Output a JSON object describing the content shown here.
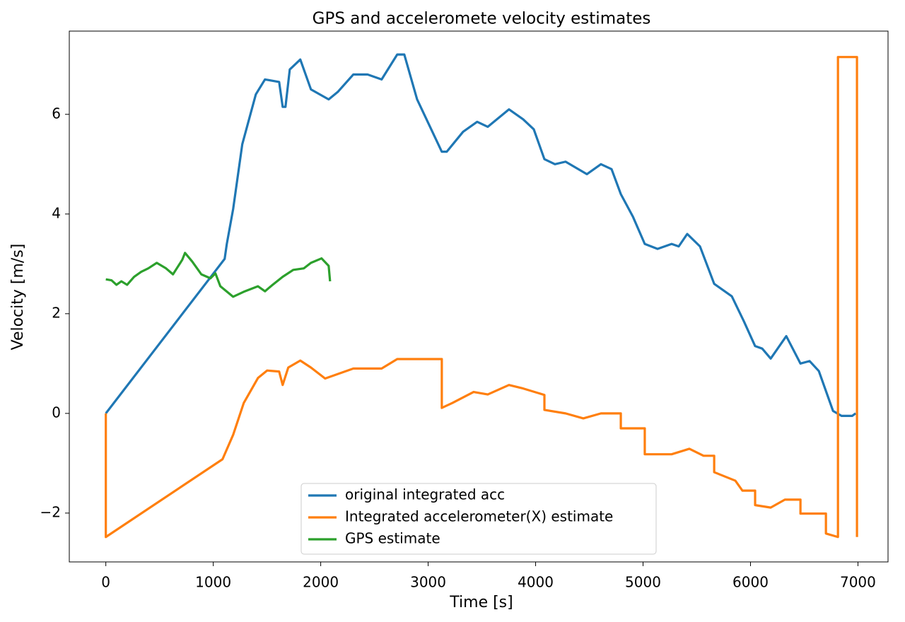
{
  "chart_data": {
    "type": "line",
    "title": "GPS and acceleromete velocity estimates",
    "x_label": "Time [s]",
    "y_label": "Velocity [m/s]",
    "xlim": [
      -340,
      7280
    ],
    "ylim": [
      -2.98,
      7.67
    ],
    "xticks": [
      0,
      1000,
      2000,
      3000,
      4000,
      5000,
      6000,
      7000
    ],
    "yticks": [
      {
        "value": -2,
        "label": "−2"
      },
      0,
      2,
      4,
      6
    ],
    "grid": false,
    "legend": "lower center",
    "series": [
      {
        "name": "original integrated acc",
        "color": "#1f77b4",
        "x": [
          0,
          1106,
          1126,
          1185,
          1270,
          1396,
          1481,
          1613,
          1646,
          1672,
          1712,
          1810,
          1909,
          2074,
          2159,
          2304,
          2436,
          2567,
          2712,
          2778,
          2897,
          3127,
          3173,
          3325,
          3456,
          3555,
          3752,
          3884,
          3983,
          4082,
          4180,
          4279,
          4477,
          4608,
          4707,
          4793,
          4905,
          5016,
          5135,
          5266,
          5332,
          5411,
          5530,
          5662,
          5727,
          5826,
          5938,
          6043,
          6109,
          6188,
          6333,
          6465,
          6550,
          6636,
          6768,
          6847,
          6946,
          6979
        ],
        "values": [
          0,
          3.1,
          3.4,
          4.1,
          5.4,
          6.4,
          6.7,
          6.65,
          6.15,
          6.15,
          6.9,
          7.1,
          6.5,
          6.3,
          6.45,
          6.8,
          6.8,
          6.7,
          7.2,
          7.2,
          6.3,
          5.25,
          5.25,
          5.65,
          5.85,
          5.75,
          6.1,
          5.9,
          5.7,
          5.1,
          5.0,
          5.05,
          4.8,
          5.0,
          4.9,
          4.4,
          3.95,
          3.4,
          3.3,
          3.4,
          3.35,
          3.6,
          3.35,
          2.6,
          2.5,
          2.35,
          1.85,
          1.35,
          1.3,
          1.1,
          1.55,
          1.0,
          1.05,
          0.85,
          0.05,
          -0.05,
          -0.05,
          0
        ]
      },
      {
        "name": "Integrated accelerometer(X) estimate",
        "color": "#ff7f0e",
        "x": [
          0,
          0,
          1086,
          1185,
          1284,
          1416,
          1501,
          1613,
          1646,
          1698,
          1810,
          1909,
          2041,
          2304,
          2567,
          2712,
          3127,
          3127,
          3226,
          3423,
          3555,
          3752,
          3884,
          4082,
          4082,
          4279,
          4444,
          4608,
          4793,
          4793,
          5016,
          5016,
          5266,
          5431,
          5563,
          5662,
          5662,
          5859,
          5925,
          6043,
          6043,
          6188,
          6320,
          6465,
          6465,
          6702,
          6702,
          6814,
          6814,
          6991,
          6991
        ],
        "values": [
          0,
          -2.48,
          -0.92,
          -0.43,
          0.21,
          0.71,
          0.86,
          0.84,
          0.57,
          0.92,
          1.06,
          0.92,
          0.7,
          0.9,
          0.9,
          1.09,
          1.09,
          0.11,
          0.21,
          0.43,
          0.38,
          0.57,
          0.5,
          0.37,
          0.07,
          0,
          -0.1,
          0,
          0,
          -0.3,
          -0.3,
          -0.82,
          -0.82,
          -0.71,
          -0.85,
          -0.85,
          -1.18,
          -1.35,
          -1.55,
          -1.55,
          -1.84,
          -1.89,
          -1.73,
          -1.73,
          -2.01,
          -2.01,
          -2.41,
          -2.48,
          7.15,
          7.15,
          -2.48
        ]
      },
      {
        "name": "GPS estimate",
        "color": "#2ca02c",
        "x": [
          0,
          53,
          99,
          145,
          198,
          263,
          329,
          395,
          474,
          560,
          625,
          711,
          737,
          803,
          889,
          974,
          1020,
          1066,
          1185,
          1284,
          1416,
          1481,
          1547,
          1646,
          1745,
          1843,
          1909,
          2008,
          2074,
          2087
        ],
        "values": [
          2.69,
          2.67,
          2.58,
          2.65,
          2.58,
          2.74,
          2.84,
          2.91,
          3.02,
          2.91,
          2.79,
          3.08,
          3.22,
          3.05,
          2.79,
          2.71,
          2.81,
          2.55,
          2.34,
          2.44,
          2.55,
          2.45,
          2.57,
          2.74,
          2.88,
          2.91,
          3.02,
          3.11,
          2.96,
          2.65
        ]
      }
    ]
  }
}
